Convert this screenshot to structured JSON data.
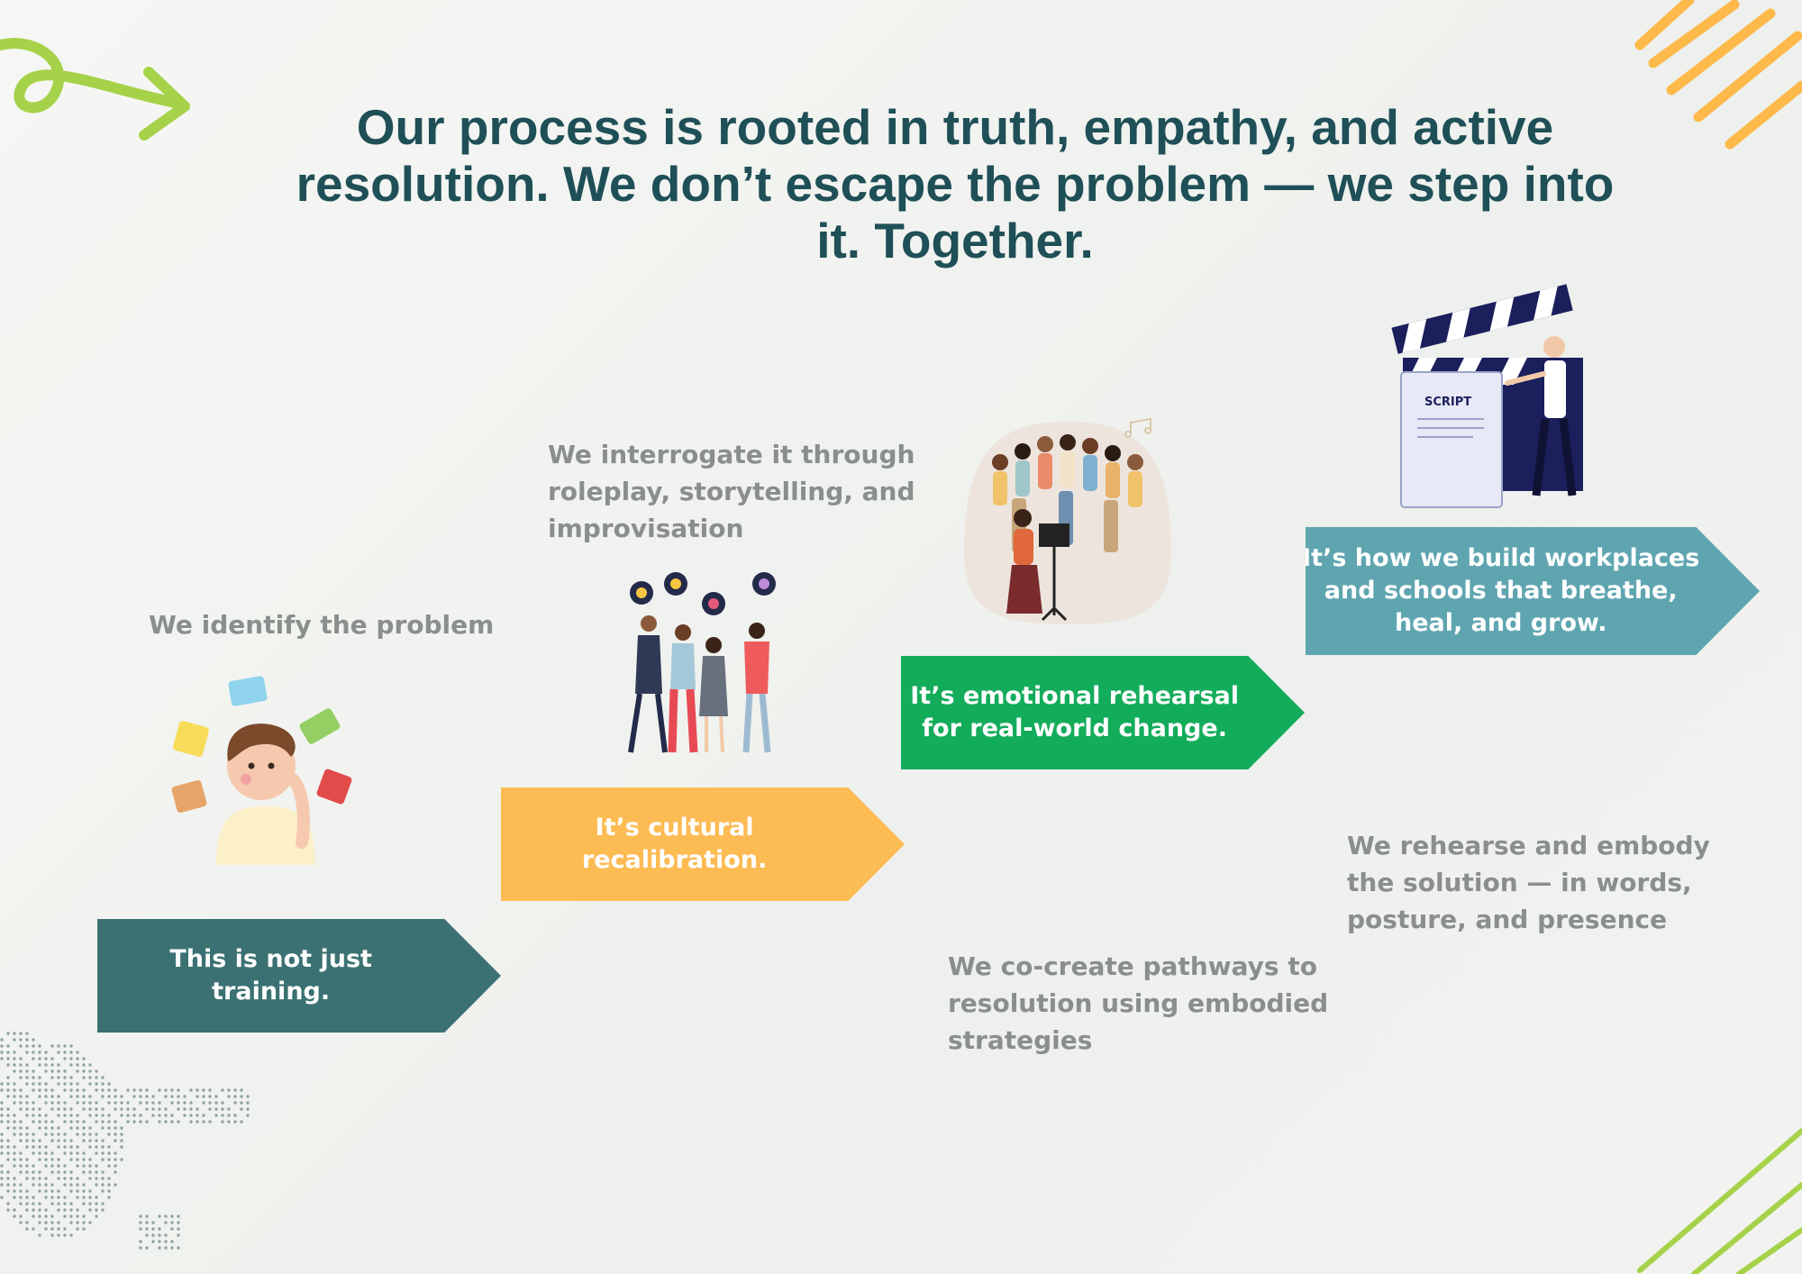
{
  "headline": {
    "lines": [
      "Our process is rooted in truth, empathy, and active",
      "resolution. We don’t escape the problem — we step into",
      "it. Together."
    ]
  },
  "captions": {
    "identify": [
      "We identify the problem"
    ],
    "interrogate": [
      "We interrogate it through",
      "roleplay, storytelling, and",
      "improvisation"
    ],
    "cocreate": [
      "We co-create pathways to",
      "resolution using embodied",
      "strategies"
    ],
    "rehearse": [
      "We rehearse and embody",
      "the solution — in words,",
      "posture, and presence"
    ]
  },
  "steps": [
    {
      "lines": [
        "This is not just",
        "training."
      ],
      "color": "#3b7172"
    },
    {
      "lines": [
        "It’s cultural",
        "recalibration."
      ],
      "color": "#fdbb54"
    },
    {
      "lines": [
        "It’s emotional rehearsal",
        "for real-world change."
      ],
      "color": "#13ac5b"
    },
    {
      "lines": [
        "It’s how we build workplaces",
        "and schools that breathe,",
        "heal, and grow."
      ],
      "color": "#5fa5b0"
    }
  ],
  "illustrations": {
    "script_label": "SCRIPT",
    "icons": [
      "puzzle-thinker-icon",
      "group-discussion-icon",
      "choir-conductor-icon",
      "clapperboard-script-icon"
    ]
  },
  "colors": {
    "headline": "#1f4f57",
    "caption": "#8a8f8b",
    "deco_green": "#a6d24a",
    "deco_orange": "#fdb94a",
    "dots": "#8fa3a6"
  }
}
